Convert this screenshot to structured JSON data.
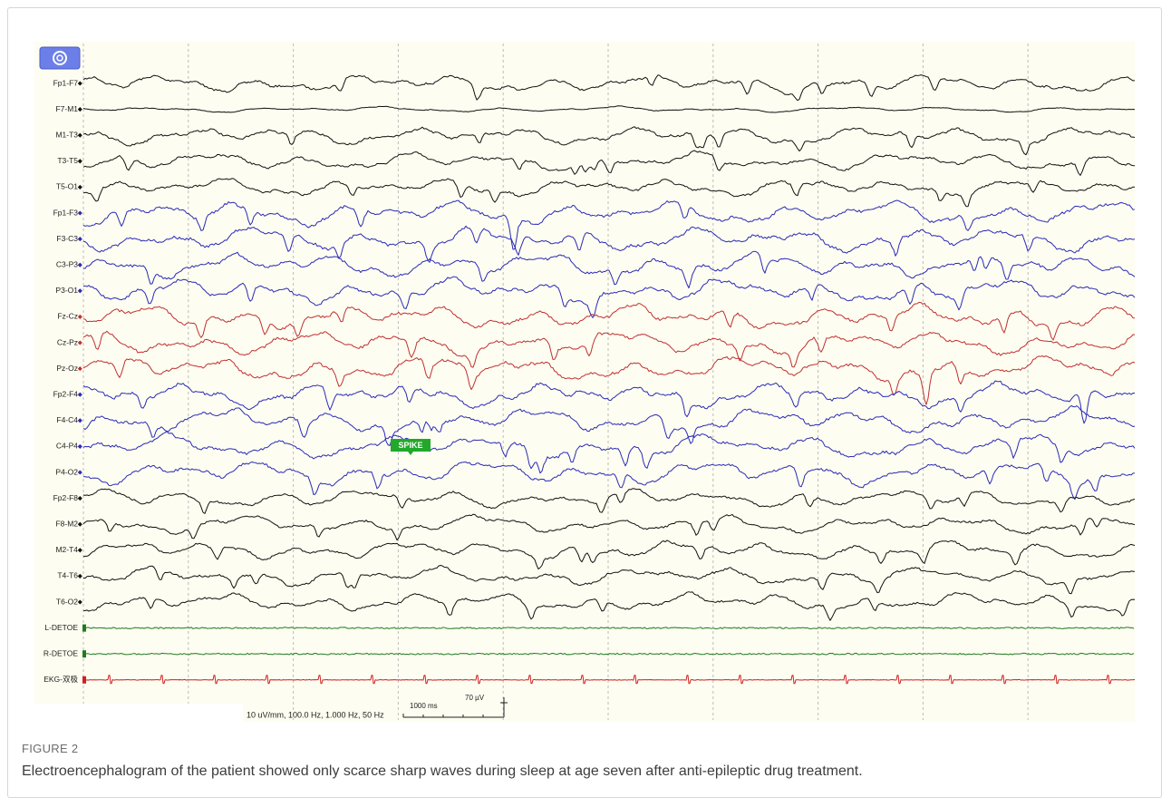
{
  "figure": {
    "label": "FIGURE 2",
    "caption": "Electroencephalogram of the patient showed only scarce sharp waves during sleep at age seven after anti-epileptic drug treatment."
  },
  "eeg": {
    "channels": [
      {
        "name": "Fp1-F7",
        "color": "#111111"
      },
      {
        "name": "F7-M1",
        "color": "#111111"
      },
      {
        "name": "M1-T3",
        "color": "#111111"
      },
      {
        "name": "T3-T5",
        "color": "#111111"
      },
      {
        "name": "T5-O1",
        "color": "#111111"
      },
      {
        "name": "Fp1-F3",
        "color": "#2a2ab8"
      },
      {
        "name": "F3-C3",
        "color": "#2a2ab8"
      },
      {
        "name": "C3-P3",
        "color": "#2a2ab8"
      },
      {
        "name": "P3-O1",
        "color": "#2a2ab8"
      },
      {
        "name": "Fz-Cz",
        "color": "#c03030"
      },
      {
        "name": "Cz-Pz",
        "color": "#c03030"
      },
      {
        "name": "Pz-Oz",
        "color": "#c03030"
      },
      {
        "name": "Fp2-F4",
        "color": "#2a2ab8"
      },
      {
        "name": "F4-C4",
        "color": "#2a2ab8"
      },
      {
        "name": "C4-P4",
        "color": "#2a2ab8"
      },
      {
        "name": "P4-O2",
        "color": "#2a2ab8"
      },
      {
        "name": "Fp2-F8",
        "color": "#111111"
      },
      {
        "name": "F8-M2",
        "color": "#111111"
      },
      {
        "name": "M2-T4",
        "color": "#111111"
      },
      {
        "name": "T4-T6",
        "color": "#111111"
      },
      {
        "name": "T6-O2",
        "color": "#111111"
      },
      {
        "name": "L-DETOE",
        "color": "#1f7a1f"
      },
      {
        "name": "R-DETOE",
        "color": "#1f7a1f"
      },
      {
        "name": "EKG-双极",
        "color": "#d02020"
      }
    ],
    "annotation": "SPIKE",
    "settings": "10 uV/mm, 100.0 Hz, 1.000 Hz, 50 Hz",
    "time_scale": "1000 ms",
    "amplitude_scale": "70 µV"
  }
}
